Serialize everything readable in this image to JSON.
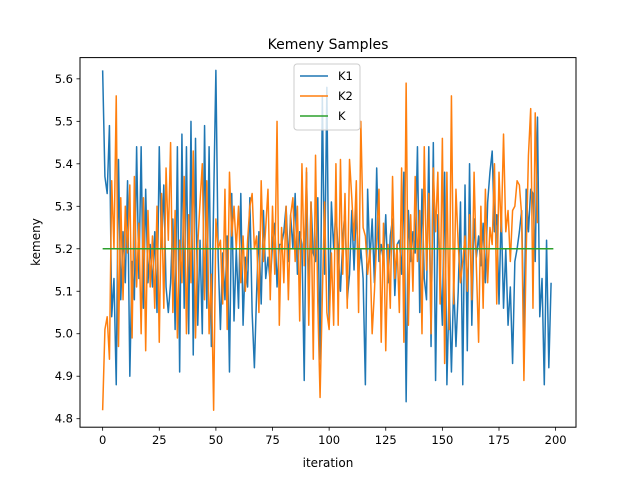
{
  "chart_data": {
    "type": "line",
    "title": "Kemeny Samples",
    "xlabel": "iteration",
    "ylabel": "kemeny",
    "xlim": [
      -10,
      209
    ],
    "ylim": [
      4.78,
      5.65
    ],
    "xticks": [
      0,
      25,
      50,
      75,
      100,
      125,
      150,
      175,
      200
    ],
    "yticks": [
      4.8,
      4.9,
      5.0,
      5.1,
      5.2,
      5.3,
      5.4,
      5.5,
      5.6
    ],
    "grid": false,
    "legend_position": "top-center",
    "series": [
      {
        "name": "K1",
        "color": "#1f77b4",
        "values": [
          5.62,
          5.37,
          5.33,
          5.49,
          5.04,
          5.13,
          4.88,
          5.41,
          5.08,
          5.24,
          5.12,
          5.36,
          4.9,
          5.17,
          5.08,
          5.44,
          5.13,
          5.44,
          5.06,
          5.34,
          5.12,
          5.21,
          5.11,
          5.24,
          5.05,
          5.44,
          5.2,
          5.35,
          5.11,
          5.05,
          5.12,
          5.27,
          5.01,
          5.44,
          4.91,
          5.47,
          5.06,
          5.44,
          5.0,
          5.5,
          4.95,
          5.46,
          5.02,
          5.22,
          5.0,
          5.49,
          5.06,
          5.44,
          4.97,
          5.31,
          5.62,
          5.18,
          5.01,
          5.19,
          5.08,
          5.23,
          4.91,
          5.33,
          5.03,
          5.2,
          5.06,
          5.33,
          5.02,
          5.18,
          5.11,
          5.32,
          5.05,
          4.92,
          5.1,
          5.24,
          5.07,
          5.29,
          5.13,
          5.18,
          5.12,
          5.21,
          5.26,
          5.11,
          5.21,
          5.21,
          5.24,
          5.3,
          5.17,
          5.28,
          5.2,
          5.33,
          5.14,
          5.24,
          5.21,
          4.89,
          5.38,
          5.09,
          5.31,
          5.19,
          5.17,
          5.32,
          4.94,
          5.56,
          5.14,
          5.58,
          5.02,
          5.31,
          5.2,
          5.29,
          5.19,
          5.1,
          5.22,
          5.29,
          5.08,
          5.14,
          5.29,
          5.15,
          5.3,
          5.14,
          5.2,
          5.13,
          4.88,
          5.34,
          5.17,
          5.27,
          5.12,
          5.39,
          5.17,
          5.21,
          5.17,
          5.28,
          5.12,
          5.23,
          5.27,
          5.09,
          5.21,
          5.22,
          5.14,
          5.38,
          4.84,
          5.29,
          5.17,
          5.24,
          5.19,
          5.44,
          5.05,
          5.34,
          5.13,
          5.08,
          5.44,
          4.97,
          5.45,
          4.89,
          5.28,
          5.15,
          5.02,
          5.38,
          4.88,
          5.11,
          4.91,
          5.12,
          4.97,
          5.1,
          5.31,
          4.88,
          5.35,
          4.96,
          5.4,
          5.02,
          5.27,
          5.18,
          5.23,
          5.16,
          5.26,
          5.12,
          5.31,
          5.38,
          5.43,
          5.24,
          5.28,
          5.07,
          5.29,
          5.06,
          5.2,
          5.02,
          5.11,
          4.93,
          5.17,
          5.2,
          5.24,
          5.29,
          5.0,
          5.34,
          5.24,
          5.34,
          5.33,
          5.17,
          5.51,
          5.04,
          5.13,
          4.88,
          5.22,
          4.92,
          5.12
        ]
      },
      {
        "name": "K2",
        "color": "#ff7f0e",
        "values": [
          4.82,
          5.01,
          5.04,
          4.94,
          5.36,
          5.2,
          5.56,
          4.97,
          5.32,
          5.08,
          5.3,
          5.19,
          5.35,
          4.99,
          5.37,
          5.11,
          5.26,
          5.0,
          5.32,
          4.96,
          5.29,
          5.11,
          5.23,
          5.06,
          5.3,
          4.98,
          5.33,
          5.06,
          5.39,
          5.22,
          5.45,
          5.05,
          5.29,
          4.99,
          5.22,
          5.12,
          5.37,
          5.0,
          5.28,
          5.12,
          5.43,
          4.99,
          5.21,
          5.31,
          5.4,
          5.08,
          5.36,
          5.0,
          5.14,
          4.82,
          5.27,
          5.2,
          5.22,
          5.07,
          5.34,
          5.01,
          5.38,
          5.23,
          5.3,
          5.2,
          5.3,
          5.12,
          5.23,
          5.1,
          5.22,
          5.3,
          5.33,
          5.2,
          5.23,
          5.05,
          5.36,
          5.17,
          5.25,
          5.34,
          5.08,
          5.3,
          5.14,
          5.5,
          5.02,
          5.25,
          5.12,
          5.3,
          5.08,
          5.28,
          5.32,
          5.17,
          5.3,
          5.03,
          5.4,
          5.16,
          5.39,
          5.02,
          5.31,
          4.94,
          5.42,
          5.07,
          4.85,
          5.09,
          5.31,
          5.05,
          5.01,
          5.19,
          5.02,
          5.4,
          5.02,
          5.41,
          5.14,
          5.33,
          5.06,
          5.41,
          5.32,
          5.22,
          5.36,
          5.05,
          5.5,
          5.25,
          5.23,
          5.14,
          5.2,
          5.0,
          5.1,
          5.22,
          5.34,
          4.98,
          5.26,
          4.96,
          5.21,
          5.06,
          5.37,
          5.13,
          5.21,
          5.05,
          5.39,
          4.98,
          5.59,
          5.02,
          5.28,
          5.1,
          5.37,
          5.17,
          5.29,
          5.0,
          5.44,
          5.15,
          5.33,
          5.0,
          5.39,
          5.24,
          5.38,
          5.07,
          5.46,
          4.93,
          5.38,
          5.01,
          5.56,
          5.07,
          5.34,
          5.21,
          5.12,
          5.17,
          5.23,
          5.1,
          5.28,
          5.08,
          5.38,
          5.16,
          4.98,
          5.3,
          5.06,
          5.34,
          5.12,
          5.25,
          5.21,
          5.4,
          5.07,
          5.38,
          5.24,
          5.47,
          5.24,
          5.29,
          5.17,
          5.29,
          5.3,
          5.36,
          5.35,
          5.28,
          4.89,
          5.19,
          5.42,
          5.53,
          5.06,
          5.52,
          5.26
        ]
      },
      {
        "name": "K",
        "color": "#2ca02c",
        "values": [
          5.2,
          5.2
        ]
      }
    ]
  }
}
